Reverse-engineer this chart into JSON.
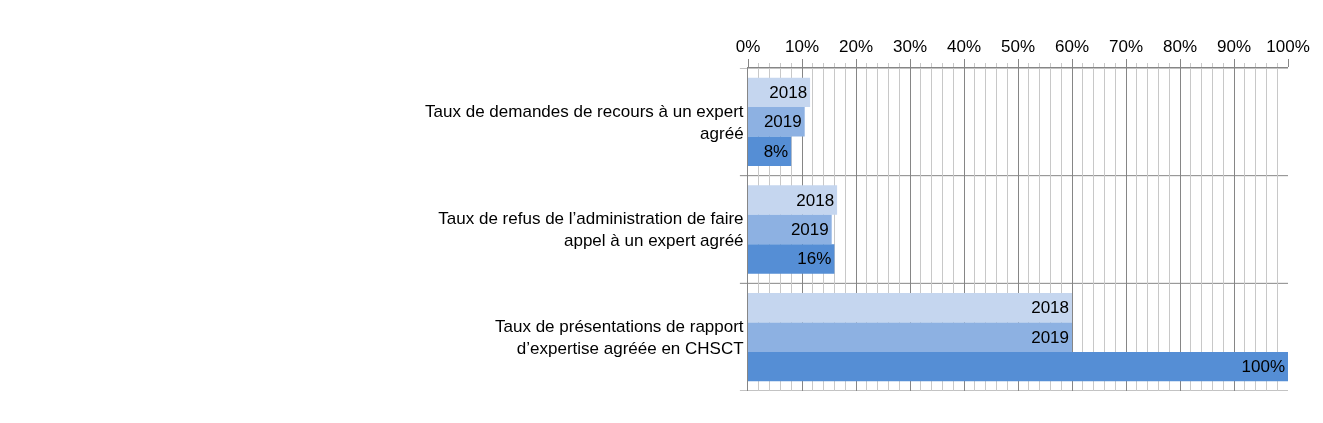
{
  "chart_data": {
    "type": "bar",
    "orientation": "horizontal",
    "categories": [
      "Taux de demandes de recours à un expert agréé",
      "Taux de refus de l’administration de faire appel à un expert agréé",
      "Taux de présentations de rapport d’expertise agréée en CHSCT"
    ],
    "series": [
      {
        "name": "2018",
        "color": "#c5d6ef",
        "values": [
          11.5,
          16.5,
          60
        ]
      },
      {
        "name": "2019",
        "color": "#8db1e2",
        "values": [
          10.5,
          15.5,
          60
        ]
      },
      {
        "color": "#558ed5",
        "values": [
          8,
          16,
          100
        ],
        "value_labels": [
          "8%",
          "16%",
          "100%"
        ]
      }
    ],
    "xlim": [
      0,
      100
    ],
    "xticks": [
      {
        "value": 0,
        "label": "0%"
      },
      {
        "value": 10,
        "label": "10%"
      },
      {
        "value": 20,
        "label": "20%"
      },
      {
        "value": 30,
        "label": "30%"
      },
      {
        "value": 40,
        "label": "40%"
      },
      {
        "value": 50,
        "label": "50%"
      },
      {
        "value": 60,
        "label": "60%"
      },
      {
        "value": 70,
        "label": "70%"
      },
      {
        "value": 80,
        "label": "80%"
      },
      {
        "value": 90,
        "label": "90%"
      },
      {
        "value": 100,
        "label": "100%"
      }
    ],
    "grid": true,
    "legend": false
  }
}
